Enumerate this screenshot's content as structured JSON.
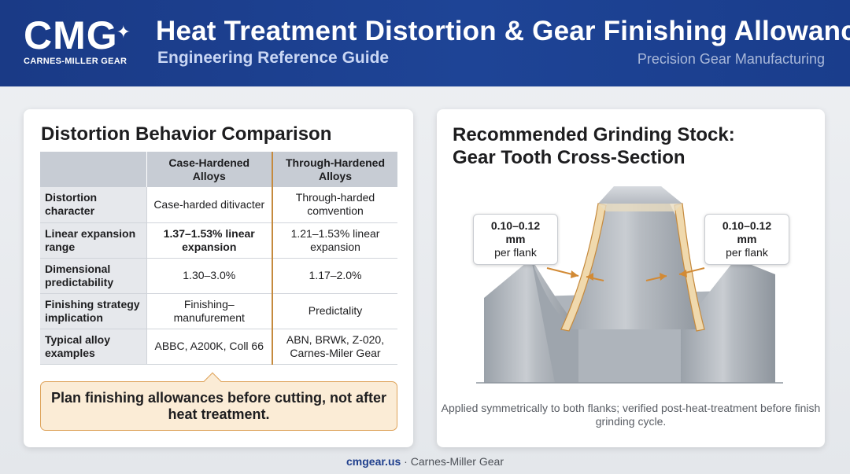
{
  "header": {
    "logo_mark": "CMG",
    "logo_sub": "CARNES-MILLER GEAR",
    "title": "Heat Treatment Distortion & Gear Finishing Allowances",
    "subtitle": "Engineering Reference Guide",
    "tagline": "Precision Gear Manufacturing"
  },
  "comparison": {
    "title": "Distortion Behavior Comparison",
    "columns": [
      "",
      "Case-Hardened Alloys",
      "Through-Hardened Alloys"
    ],
    "rows": [
      {
        "label": "Distortion character",
        "case": "Case-harded ditivacter",
        "through": "Through-harded comvention"
      },
      {
        "label": "Linear expansion range",
        "case": "1.37–1.53% linear expansion",
        "through": "1.21–1.53% linear expansion"
      },
      {
        "label": "Dimensional predictability",
        "case": "1.30–3.0%",
        "through": "1.17–2.0%"
      },
      {
        "label": "Finishing strategy implication",
        "case": "Finishing–manufurement",
        "through": "Predictality"
      },
      {
        "label": "Typical alloy examples",
        "case": "ABBC, A200K, Coll 66",
        "through": "ABN, BRWk, Z-020, Carnes-Miler Gear"
      }
    ],
    "callout": "Plan finishing allowances before cutting, not after heat treatment."
  },
  "grinding": {
    "title_line1": "Recommended Grinding Stock:",
    "title_line2": "Gear Tooth Cross-Section",
    "left_label_value": "0.10–0.12 mm",
    "left_label_unit": "per flank",
    "right_label_value": "0.10–0.12 mm",
    "right_label_unit": "per flank",
    "caption": "Applied symmetrically to both flanks; verified post-heat-treatment before finish grinding cycle."
  },
  "footer": {
    "url": "cmgear.us",
    "sep": " · ",
    "company": "Carnes-Miller Gear"
  },
  "colors": {
    "header_bg": "#1e4496",
    "accent_orange": "#c58a3e",
    "callout_bg": "#fbecd6",
    "stock_layer": "#f0d9ad"
  }
}
